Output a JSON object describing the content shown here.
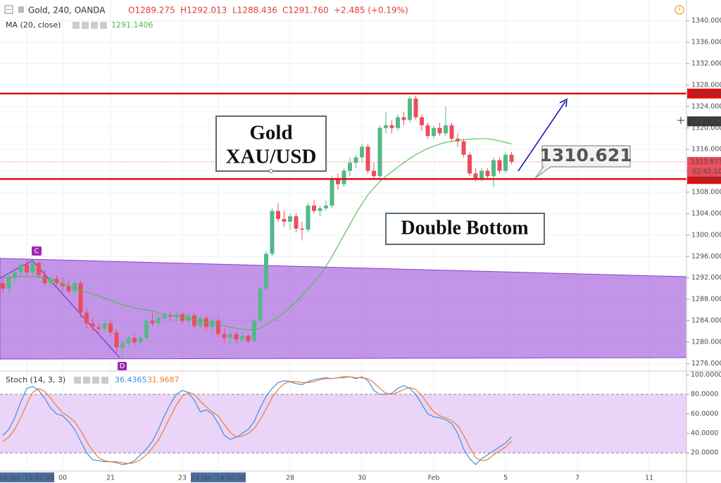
{
  "chart_data": [
    {
      "type": "candlestick",
      "title": "Gold, 240, OANDA",
      "ohlc_legend": [
        "O1289.275",
        "H1292.013",
        "L1288.436",
        "C1291.760",
        "+2.485 (+0.19%)"
      ],
      "categories": [
        null,
        null,
        null,
        null,
        "16 Jan '19 02:00",
        null,
        null,
        null,
        null,
        null,
        "00",
        null,
        null,
        null,
        null,
        null,
        null,
        null,
        "21",
        null,
        null,
        null,
        null,
        null,
        null,
        null,
        null,
        null,
        null,
        null,
        "23",
        null,
        null,
        null,
        null,
        null,
        "24 Jan '19 06:00",
        null,
        null,
        null,
        null,
        null,
        null,
        null,
        null,
        null,
        null,
        null,
        "28",
        null,
        null,
        null,
        null,
        null,
        null,
        null,
        null,
        null,
        null,
        null,
        "30",
        null,
        null,
        null,
        null,
        null,
        null,
        null,
        null,
        null,
        null,
        null,
        "Feb",
        null,
        null,
        null,
        null,
        null,
        null,
        null,
        null,
        null,
        null,
        null,
        "5",
        null,
        null,
        null,
        null,
        null,
        null,
        null,
        null,
        null,
        null,
        null,
        "7",
        null,
        null,
        null,
        null,
        null,
        null,
        null,
        null,
        null,
        null,
        null,
        "11",
        null,
        null,
        null,
        null,
        null
      ],
      "open": [
        1291,
        1290,
        1292,
        1293,
        1294.5,
        1293,
        1294.8,
        1292.5,
        1291,
        1291.8,
        1291,
        1290.5,
        1289.5,
        1291,
        1285.5,
        1283.5,
        1282.8,
        1282.5,
        1283.5,
        1281.8,
        1279,
        1279.8,
        1280.8,
        1280,
        1280.8,
        1284,
        1283.5,
        1284.5,
        1285,
        1284.8,
        1285.2,
        1284,
        1285,
        1283,
        1284.5,
        1282.8,
        1284,
        1281.5,
        1280.8,
        1281.5,
        1280.5,
        1281.2,
        1280.2,
        1284,
        1290,
        1296.5,
        1304.5,
        1303,
        1302.5,
        1303.5,
        1301.2,
        1301,
        1305.5,
        1304.5,
        1305,
        1305.5,
        1310.5,
        1309.5,
        1312,
        1313.5,
        1314.5,
        1316.5,
        1312,
        1311,
        1320,
        1320.5,
        1320,
        1322,
        1321.5,
        1325.5,
        1322,
        1320.5,
        1318.5,
        1320,
        1319,
        1320.5,
        1318,
        1317.5,
        1315,
        1311.5,
        1310.5,
        1312,
        1311,
        1314,
        1312,
        1315,
        null,
        null,
        null,
        null,
        null,
        null,
        null,
        null,
        null,
        null,
        null,
        null,
        null,
        null,
        null,
        null,
        null,
        null,
        null,
        null,
        null,
        null,
        null,
        null,
        null,
        null,
        null,
        null
      ],
      "high": [
        1292,
        1293,
        1294,
        1295,
        1295.5,
        1295.2,
        1295,
        1293.5,
        1292.5,
        1292.5,
        1292,
        1291.5,
        1291.5,
        1291.5,
        1286.5,
        1284.5,
        1283.5,
        1283.8,
        1284,
        1282.5,
        1280.5,
        1281.2,
        1281.5,
        1281.5,
        1284.5,
        1285.5,
        1285,
        1285.5,
        1285.8,
        1285.5,
        1285.5,
        1285.2,
        1285.5,
        1285,
        1285,
        1284.5,
        1284.5,
        1282.5,
        1282,
        1282,
        1281.8,
        1281.5,
        1284.5,
        1290.5,
        1297,
        1305,
        1306,
        1304.5,
        1304,
        1304,
        1302.5,
        1306,
        1306.5,
        1305.5,
        1306.5,
        1311,
        1311.5,
        1312.5,
        1314.5,
        1315,
        1317,
        1317,
        1313.5,
        1320.5,
        1323,
        1321.5,
        1322.5,
        1323,
        1326,
        1326,
        1322.5,
        1321,
        1320.5,
        1321,
        1324,
        1321,
        1319,
        1318,
        1315.5,
        1312.5,
        1312.5,
        1312.5,
        1314.5,
        1314.5,
        1315.5,
        1315.5,
        null,
        null,
        null,
        null,
        null,
        null,
        null,
        null,
        null,
        null,
        null,
        null,
        null,
        null,
        null,
        null,
        null,
        null,
        null,
        null,
        null,
        null,
        null,
        null,
        null,
        null,
        null,
        null
      ],
      "low": [
        1289,
        1289,
        1291,
        1292,
        1292,
        1292.5,
        1292,
        1290.5,
        1290,
        1290.5,
        1289.5,
        1289,
        1288.5,
        1284.5,
        1282.5,
        1282,
        1281.5,
        1281.8,
        1281,
        1278,
        1277.2,
        1279,
        1279.5,
        1279.3,
        1280.5,
        1283,
        1282.8,
        1284,
        1284,
        1283.8,
        1283.5,
        1283,
        1282.5,
        1282.5,
        1282,
        1281.5,
        1281,
        1280,
        1279.5,
        1279.8,
        1280,
        1279.8,
        1280,
        1283.5,
        1289.5,
        1296,
        1302.5,
        1301.5,
        1301,
        1300.5,
        1299,
        1300.5,
        1304,
        1303.5,
        1304.5,
        1305,
        1308.5,
        1309,
        1311,
        1312.5,
        1313.5,
        1311.5,
        1310.5,
        1310.5,
        1319,
        1319,
        1319.5,
        1320.5,
        1321,
        1321.5,
        1319.5,
        1318,
        1318,
        1318.5,
        1318.5,
        1317.5,
        1316.5,
        1314.5,
        1311,
        1310,
        1310,
        1310.5,
        1309,
        1311.5,
        1311.5,
        1313.2,
        null,
        null,
        null,
        null,
        null,
        null,
        null,
        null,
        null,
        null,
        null,
        null,
        null,
        null,
        null,
        null,
        null,
        null,
        null,
        null,
        null,
        null,
        null,
        null,
        null,
        null,
        null,
        null
      ],
      "close": [
        1290,
        1292,
        1293,
        1294.5,
        1293,
        1294.8,
        1292.5,
        1291,
        1291.8,
        1291,
        1290.5,
        1289.5,
        1291,
        1285.5,
        1283.5,
        1282.8,
        1282.5,
        1283.5,
        1281.8,
        1279,
        1279.8,
        1280.8,
        1280,
        1280.8,
        1284,
        1283.5,
        1284.5,
        1285,
        1284.8,
        1285.2,
        1284,
        1285,
        1283,
        1284.5,
        1282.8,
        1284,
        1281.5,
        1280.8,
        1281.5,
        1280.5,
        1281.2,
        1280.2,
        1284,
        1290,
        1296.5,
        1304.5,
        1303,
        1302.5,
        1303.5,
        1301.2,
        1301,
        1305.5,
        1304.5,
        1305,
        1305.5,
        1310.5,
        1309.5,
        1312,
        1313.5,
        1314.5,
        1316.5,
        1312,
        1311,
        1320,
        1320.5,
        1320,
        1322,
        1321.5,
        1325.5,
        1322,
        1320.5,
        1318.5,
        1320,
        1319,
        1320.5,
        1318,
        1317.5,
        1315,
        1311.5,
        1310.5,
        1312,
        1311,
        1314,
        1312,
        1315,
        1313.673,
        null,
        null,
        null,
        null,
        null,
        null,
        null,
        null,
        null,
        null,
        null,
        null,
        null,
        null,
        null,
        null,
        null,
        null,
        null,
        null,
        null,
        null,
        null,
        null,
        null,
        null,
        null,
        null
      ],
      "up_color": "#53b987",
      "down_color": "#eb4d5c",
      "series": [
        {
          "name": "MA (20, close)",
          "color": "#4cbb4c",
          "legend_value": "1291.1406",
          "values": [
            1292,
            1292.1,
            1292.2,
            1292.3,
            1292.3,
            1292.3,
            1292.2,
            1292,
            1291.7,
            1291.3,
            1290.9,
            1290.5,
            1290.2,
            1289.8,
            1289.4,
            1289,
            1288.6,
            1288.2,
            1287.8,
            1287.4,
            1287,
            1286.7,
            1286.4,
            1286.2,
            1286,
            1285.8,
            1285.5,
            1285.2,
            1285,
            1284.8,
            1284.6,
            1284.4,
            1284.2,
            1284,
            1283.8,
            1283.6,
            1283.3,
            1283,
            1282.8,
            1282.6,
            1282.4,
            1282.3,
            1282.3,
            1282.6,
            1283.2,
            1284,
            1284.7,
            1285.5,
            1286.5,
            1287.5,
            1288.7,
            1290,
            1291.2,
            1292.5,
            1294.2,
            1296,
            1298,
            1300,
            1302,
            1304,
            1305.8,
            1307.5,
            1308.8,
            1310,
            1311,
            1311.8,
            1312.7,
            1313.5,
            1314.3,
            1315,
            1315.6,
            1316.2,
            1316.6,
            1317,
            1317.3,
            1317.5,
            1317.7,
            1317.8,
            1317.9,
            1318,
            1318,
            1318,
            1317.8,
            1317.6,
            1317.3,
            1317,
            null,
            null,
            null,
            null,
            null,
            null,
            null,
            null,
            null,
            null,
            null,
            null,
            null,
            null,
            null,
            null,
            null,
            null,
            null,
            null,
            null,
            null,
            null,
            null,
            null,
            null,
            null,
            null
          ]
        }
      ],
      "ylim": [
        1274.6,
        1343.9
      ],
      "yticks": [
        {
          "value": 1340,
          "label": "1340.000"
        },
        {
          "value": 1336,
          "label": "1336.000"
        },
        {
          "value": 1332,
          "label": "1332.000"
        },
        {
          "value": 1328,
          "label": "1328.000"
        },
        {
          "value": 1324,
          "label": "1324.000"
        },
        {
          "value": 1320,
          "label": "1320.000"
        },
        {
          "value": 1316,
          "label": "1316.000"
        },
        {
          "value": 1312,
          "label": "1312.000"
        },
        {
          "value": 1308,
          "label": "1308.000"
        },
        {
          "value": 1304,
          "label": "1304.000"
        },
        {
          "value": 1300,
          "label": "1300.000"
        },
        {
          "value": 1296,
          "label": "1296.000"
        },
        {
          "value": 1292,
          "label": "1292.000"
        },
        {
          "value": 1288,
          "label": "1288.000"
        },
        {
          "value": 1284,
          "label": "1284.000"
        },
        {
          "value": 1280,
          "label": "1280.000"
        },
        {
          "value": 1276,
          "label": "1276.000"
        }
      ],
      "grid": true,
      "price_lines": [
        1326.427,
        1310.464
      ],
      "price_line_color": "#e01010",
      "crosshair": 1321.236,
      "countdown": "02:42:10",
      "annotations": {
        "title_box": [
          "Gold",
          "XAU/USD"
        ],
        "pattern_box": "Double Bottom",
        "callout": 1310.621,
        "points": [
          "C",
          "D"
        ]
      }
    },
    {
      "type": "line",
      "title": "Stoch (14, 3, 3)",
      "series": [
        {
          "color": "#3d8fe0",
          "values": [
            38,
            44,
            56,
            72,
            86,
            88,
            84,
            76,
            66,
            60,
            58,
            52,
            44,
            32,
            20,
            13,
            12,
            11,
            11,
            10,
            8,
            9,
            12,
            18,
            24,
            32,
            44,
            58,
            70,
            80,
            84,
            82,
            74,
            62,
            64,
            60,
            50,
            38,
            34,
            36,
            40,
            44,
            52,
            66,
            78,
            86,
            92,
            94,
            93,
            91,
            90,
            93,
            95,
            96,
            97,
            96,
            97,
            98,
            98,
            96,
            98,
            94,
            84,
            80,
            80,
            81,
            86,
            89,
            86,
            80,
            70,
            60,
            57,
            56,
            54,
            50,
            40,
            24,
            14,
            8,
            14,
            18,
            22,
            26,
            30,
            36.4365,
            null,
            null,
            null,
            null,
            null,
            null,
            null,
            null,
            null,
            null,
            null,
            null,
            null,
            null,
            null,
            null,
            null,
            null,
            null,
            null,
            null,
            null,
            null,
            null,
            null,
            null,
            null,
            null
          ]
        },
        {
          "color": "#ef7d32",
          "values": [
            32,
            36,
            44,
            56,
            70,
            82,
            86,
            83,
            76,
            68,
            61,
            57,
            52,
            43,
            32,
            22,
            15,
            12,
            11,
            11,
            10,
            9,
            10,
            13,
            18,
            25,
            33,
            45,
            57,
            69,
            78,
            82,
            80,
            73,
            67,
            62,
            58,
            49,
            41,
            36,
            37,
            40,
            45,
            54,
            65,
            77,
            85,
            91,
            93,
            93,
            92,
            92,
            93,
            95,
            96,
            96,
            97,
            97,
            98,
            97,
            97,
            96,
            92,
            86,
            81,
            80,
            82,
            85,
            87,
            85,
            79,
            70,
            62,
            58,
            56,
            53,
            48,
            38,
            26,
            15,
            12,
            13,
            18,
            22,
            26,
            31.9687,
            null,
            null,
            null,
            null,
            null,
            null,
            null,
            null,
            null,
            null,
            null,
            null,
            null,
            null,
            null,
            null,
            null,
            null,
            null,
            null,
            null,
            null,
            null,
            null,
            null,
            null,
            null,
            null
          ]
        }
      ],
      "ylim": [
        1.4,
        103.1
      ],
      "yticks": [
        {
          "value": 100,
          "label": "100.0000"
        },
        {
          "value": 80,
          "label": "80.0000"
        },
        {
          "value": 60,
          "label": "60.0000"
        },
        {
          "value": 40,
          "label": "40.0000"
        },
        {
          "value": 20,
          "label": "20.0000"
        }
      ],
      "band": [
        20,
        80
      ]
    }
  ]
}
